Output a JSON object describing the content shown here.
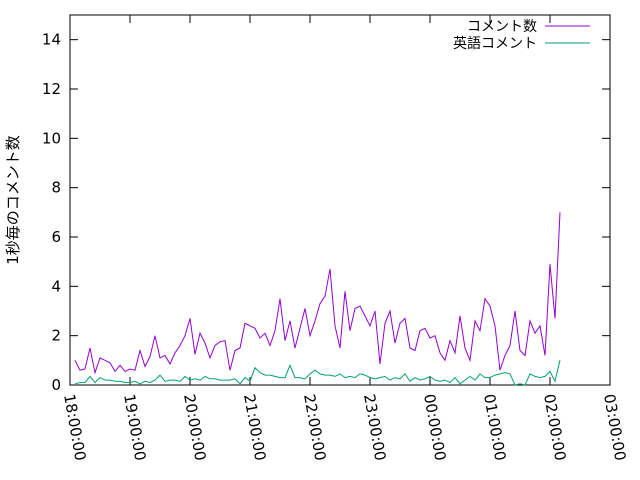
{
  "chart_data": {
    "type": "line",
    "title": "",
    "xlabel": "",
    "ylabel": "1秒毎のコメント数",
    "ylim": [
      0,
      15
    ],
    "xlim": [
      "18:00:00",
      "03:00:00"
    ],
    "yticks": [
      "0",
      "2",
      "4",
      "6",
      "8",
      "10",
      "12",
      "14"
    ],
    "xticks": [
      "18:00:00",
      "19:00:00",
      "20:00:00",
      "21:00:00",
      "22:00:00",
      "23:00:00",
      "00:00:00",
      "01:00:00",
      "02:00:00",
      "03:00:00"
    ],
    "grid": false,
    "legend_position": "top-right",
    "x": [
      "18:05",
      "18:10",
      "18:15",
      "18:20",
      "18:25",
      "18:30",
      "18:35",
      "18:40",
      "18:45",
      "18:50",
      "18:55",
      "19:00",
      "19:05",
      "19:10",
      "19:15",
      "19:20",
      "19:25",
      "19:30",
      "19:35",
      "19:40",
      "19:45",
      "19:50",
      "19:55",
      "20:00",
      "20:05",
      "20:10",
      "20:15",
      "20:20",
      "20:25",
      "20:30",
      "20:35",
      "20:40",
      "20:45",
      "20:50",
      "20:55",
      "21:00",
      "21:05",
      "21:10",
      "21:15",
      "21:20",
      "21:25",
      "21:30",
      "21:35",
      "21:40",
      "21:45",
      "21:50",
      "21:55",
      "22:00",
      "22:05",
      "22:10",
      "22:15",
      "22:20",
      "22:25",
      "22:30",
      "22:35",
      "22:40",
      "22:45",
      "22:50",
      "22:55",
      "23:00",
      "23:05",
      "23:10",
      "23:15",
      "23:20",
      "23:25",
      "23:30",
      "23:35",
      "23:40",
      "23:45",
      "23:50",
      "23:55",
      "00:00",
      "00:05",
      "00:10",
      "00:15",
      "00:20",
      "00:25",
      "00:30",
      "00:35",
      "00:40",
      "00:45",
      "00:50",
      "00:55",
      "01:00",
      "01:05",
      "01:10",
      "01:15",
      "01:20",
      "01:25",
      "01:30",
      "01:35",
      "01:40",
      "01:45",
      "01:50",
      "01:55",
      "02:00",
      "02:05",
      "02:10"
    ],
    "series": [
      {
        "name": "コメント数",
        "color": "#9400d3",
        "values": [
          1.0,
          0.6,
          0.65,
          1.5,
          0.5,
          1.1,
          1.0,
          0.9,
          0.55,
          0.8,
          0.55,
          0.65,
          0.6,
          1.4,
          0.75,
          1.15,
          2.0,
          1.1,
          1.2,
          0.85,
          1.3,
          1.6,
          2.0,
          2.7,
          1.25,
          2.1,
          1.7,
          1.1,
          1.6,
          1.75,
          1.8,
          0.6,
          1.4,
          1.5,
          2.5,
          2.4,
          2.3,
          1.9,
          2.1,
          1.6,
          2.2,
          3.5,
          1.8,
          2.6,
          1.5,
          2.3,
          3.1,
          2.0,
          2.6,
          3.3,
          3.6,
          4.7,
          2.4,
          1.5,
          3.8,
          2.2,
          3.1,
          3.2,
          2.8,
          2.4,
          3.0,
          0.85,
          2.5,
          3.0,
          1.7,
          2.5,
          2.7,
          1.5,
          1.4,
          2.2,
          2.3,
          1.9,
          2.0,
          1.3,
          1.0,
          1.8,
          1.3,
          2.8,
          1.5,
          1.0,
          2.6,
          2.2,
          3.5,
          3.2,
          2.4,
          0.6,
          1.2,
          1.6,
          3.0,
          1.4,
          1.2,
          2.6,
          2.1,
          2.4,
          1.2,
          4.9,
          2.7,
          7.0
        ]
      },
      {
        "name": "英語コメント",
        "color": "#009e73",
        "values": [
          0.05,
          0.1,
          0.1,
          0.35,
          0.1,
          0.3,
          0.2,
          0.2,
          0.15,
          0.15,
          0.1,
          0.1,
          0.15,
          0.05,
          0.15,
          0.1,
          0.2,
          0.4,
          0.15,
          0.2,
          0.2,
          0.15,
          0.35,
          0.2,
          0.25,
          0.2,
          0.35,
          0.25,
          0.25,
          0.2,
          0.2,
          0.2,
          0.25,
          0.05,
          0.3,
          0.15,
          0.7,
          0.5,
          0.4,
          0.4,
          0.35,
          0.3,
          0.3,
          0.8,
          0.3,
          0.3,
          0.25,
          0.45,
          0.6,
          0.45,
          0.4,
          0.4,
          0.35,
          0.45,
          0.3,
          0.35,
          0.3,
          0.45,
          0.4,
          0.3,
          0.25,
          0.3,
          0.35,
          0.2,
          0.3,
          0.25,
          0.45,
          0.15,
          0.3,
          0.2,
          0.25,
          0.35,
          0.2,
          0.15,
          0.2,
          0.1,
          0.3,
          0.05,
          0.2,
          0.35,
          0.2,
          0.45,
          0.3,
          0.3,
          0.4,
          0.45,
          0.5,
          0.45,
          0.0,
          0.05,
          0.0,
          0.45,
          0.35,
          0.3,
          0.35,
          0.55,
          0.15,
          1.0
        ]
      }
    ]
  }
}
